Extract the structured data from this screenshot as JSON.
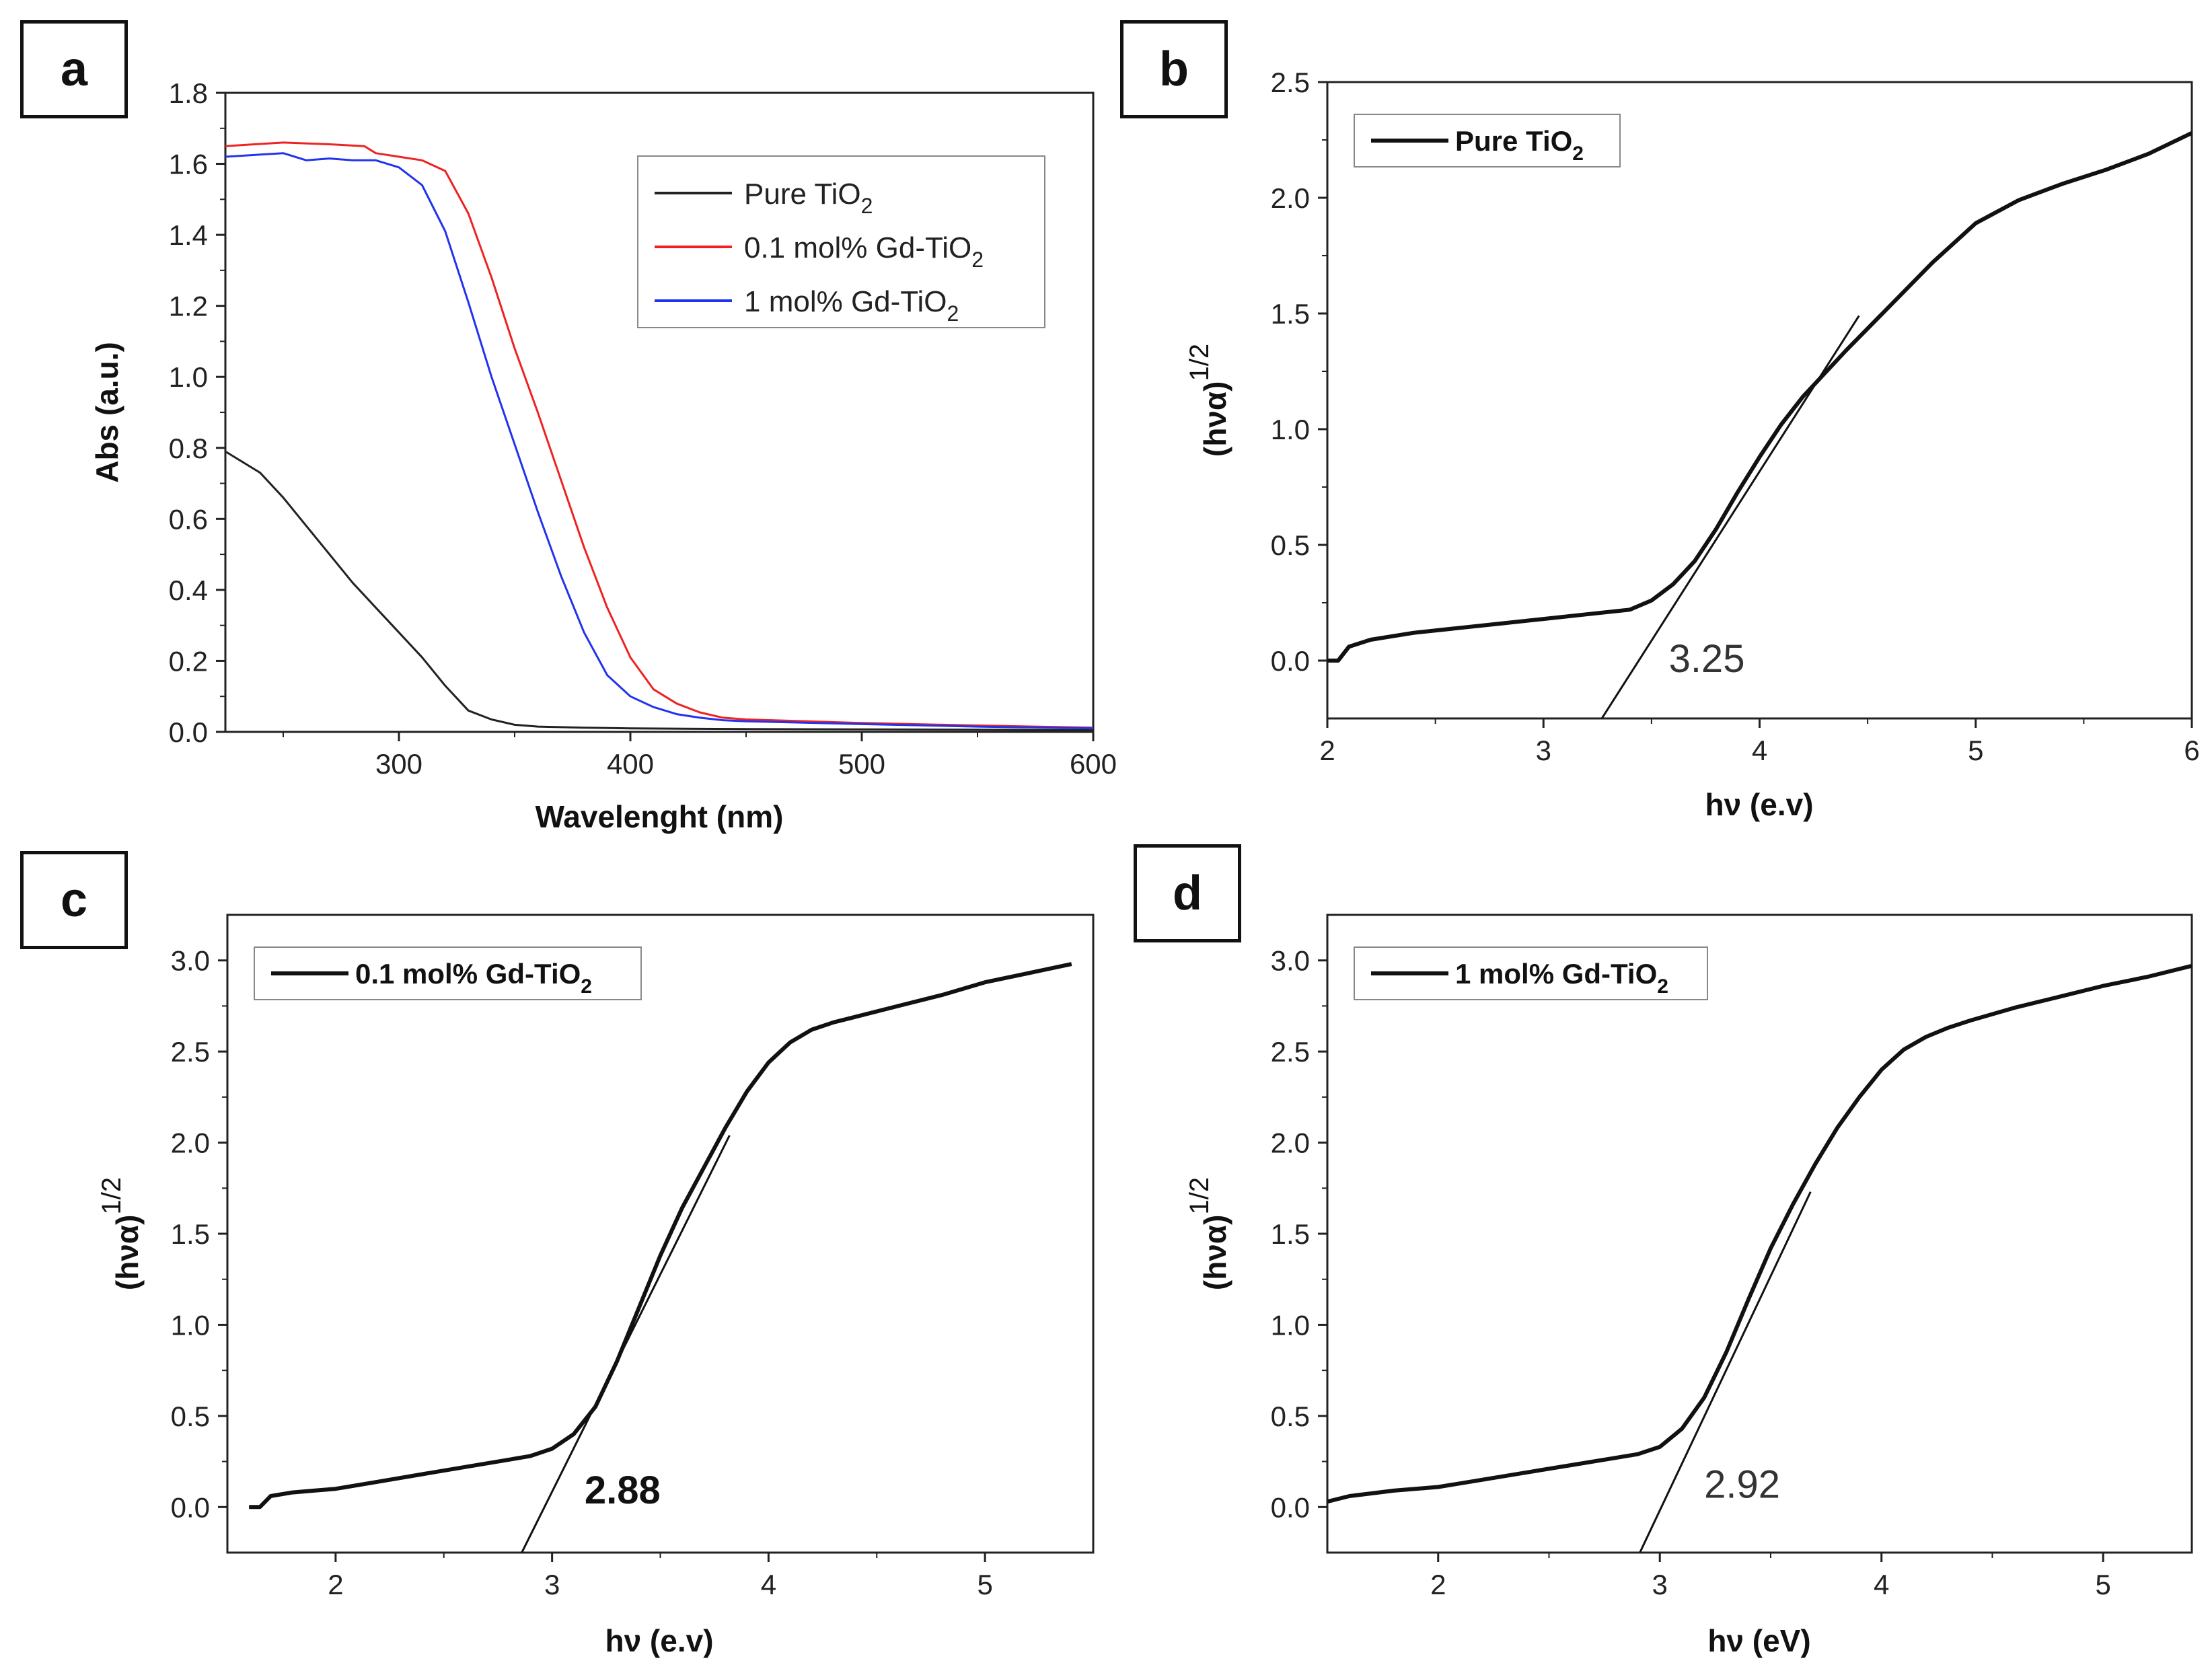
{
  "chart_data": [
    {
      "panel": "a",
      "type": "line",
      "title": "",
      "xlabel": "Wavelenght (nm)",
      "ylabel": "Abs (a.u.)",
      "xlim": [
        225,
        600
      ],
      "ylim": [
        0,
        1.8
      ],
      "xticks": [
        300,
        400,
        500,
        600
      ],
      "yticks": [
        0.0,
        0.2,
        0.4,
        0.6,
        0.8,
        1.0,
        1.2,
        1.4,
        1.6,
        1.8
      ],
      "legend": "top-right",
      "series": [
        {
          "name": "Pure TiO",
          "sub": "2",
          "color": "#222222",
          "x": [
            225,
            240,
            250,
            260,
            270,
            280,
            290,
            300,
            310,
            320,
            330,
            340,
            350,
            360,
            380,
            400,
            450,
            500,
            550,
            600
          ],
          "y": [
            0.79,
            0.73,
            0.66,
            0.58,
            0.5,
            0.42,
            0.35,
            0.28,
            0.21,
            0.13,
            0.06,
            0.035,
            0.02,
            0.015,
            0.012,
            0.01,
            0.008,
            0.007,
            0.006,
            0.005
          ]
        },
        {
          "name": "0.1 mol% Gd-TiO",
          "sub": "2",
          "color": "#ee2222",
          "x": [
            225,
            250,
            270,
            285,
            290,
            300,
            310,
            320,
            330,
            340,
            350,
            360,
            370,
            380,
            390,
            400,
            410,
            420,
            430,
            440,
            450,
            500,
            550,
            600
          ],
          "y": [
            1.65,
            1.66,
            1.655,
            1.65,
            1.63,
            1.62,
            1.61,
            1.58,
            1.46,
            1.28,
            1.08,
            0.9,
            0.71,
            0.52,
            0.35,
            0.21,
            0.12,
            0.08,
            0.055,
            0.04,
            0.035,
            0.025,
            0.018,
            0.012
          ]
        },
        {
          "name": "1 mol% Gd-TiO",
          "sub": "2",
          "color": "#2233ee",
          "x": [
            225,
            250,
            260,
            270,
            280,
            290,
            300,
            310,
            320,
            330,
            340,
            350,
            360,
            370,
            380,
            390,
            400,
            410,
            420,
            430,
            440,
            450,
            500,
            550,
            600
          ],
          "y": [
            1.62,
            1.63,
            1.61,
            1.615,
            1.61,
            1.61,
            1.59,
            1.54,
            1.41,
            1.21,
            1.0,
            0.81,
            0.62,
            0.44,
            0.28,
            0.16,
            0.1,
            0.07,
            0.05,
            0.04,
            0.033,
            0.03,
            0.022,
            0.015,
            0.01
          ]
        }
      ]
    },
    {
      "panel": "b",
      "type": "line",
      "xlabel": "hν (e.v)",
      "ylabel": "(hνα)",
      "ylabel_sup": "1/2",
      "xlim": [
        2,
        6
      ],
      "ylim": [
        -0.25,
        2.5
      ],
      "xticks": [
        2,
        3,
        4,
        5,
        6
      ],
      "yticks": [
        0.0,
        0.5,
        1.0,
        1.5,
        2.0,
        2.5
      ],
      "legend": "top-left",
      "legend_label": "Pure TiO",
      "legend_sub": "2",
      "series": [
        {
          "name": "Pure TiO2",
          "x": [
            2,
            2.05,
            2.1,
            2.2,
            2.4,
            2.6,
            2.8,
            3.0,
            3.2,
            3.4,
            3.5,
            3.6,
            3.7,
            3.8,
            3.9,
            4.0,
            4.1,
            4.2,
            4.4,
            4.6,
            4.8,
            5.0,
            5.2,
            5.4,
            5.6,
            5.8,
            6.0
          ],
          "y": [
            0.0,
            0.0,
            0.06,
            0.09,
            0.12,
            0.14,
            0.16,
            0.18,
            0.2,
            0.22,
            0.26,
            0.33,
            0.43,
            0.57,
            0.73,
            0.88,
            1.02,
            1.14,
            1.34,
            1.53,
            1.72,
            1.89,
            1.99,
            2.06,
            2.12,
            2.19,
            2.28
          ]
        }
      ],
      "tangent": {
        "x": [
          3.27,
          4.46
        ],
        "y": [
          -0.25,
          1.49
        ]
      },
      "annotation": "3.25",
      "annotation_at": [
        3.58,
        -0.05
      ]
    },
    {
      "panel": "c",
      "type": "line",
      "xlabel": "hν (e.v)",
      "ylabel": "(hνα)",
      "ylabel_sup": "1/2",
      "xlim": [
        1.5,
        5.5
      ],
      "ylim": [
        -0.25,
        3.25
      ],
      "xticks": [
        2,
        3,
        4,
        5
      ],
      "yticks": [
        0.0,
        0.5,
        1.0,
        1.5,
        2.0,
        2.5,
        3.0
      ],
      "legend": "top-left",
      "legend_label": "0.1 mol% Gd-TiO",
      "legend_sub": "2",
      "series": [
        {
          "name": "0.1 mol% Gd-TiO2",
          "x": [
            1.6,
            1.65,
            1.7,
            1.8,
            1.9,
            2.0,
            2.2,
            2.4,
            2.6,
            2.8,
            2.9,
            3.0,
            3.1,
            3.2,
            3.3,
            3.4,
            3.5,
            3.6,
            3.7,
            3.8,
            3.9,
            4.0,
            4.1,
            4.2,
            4.3,
            4.4,
            4.6,
            4.8,
            5.0,
            5.2,
            5.4
          ],
          "y": [
            0.0,
            0.0,
            0.06,
            0.08,
            0.09,
            0.1,
            0.14,
            0.18,
            0.22,
            0.26,
            0.28,
            0.32,
            0.4,
            0.55,
            0.8,
            1.09,
            1.38,
            1.64,
            1.86,
            2.08,
            2.28,
            2.44,
            2.55,
            2.62,
            2.66,
            2.69,
            2.75,
            2.81,
            2.88,
            2.93,
            2.98
          ]
        }
      ],
      "tangent": {
        "x": [
          2.86,
          3.82
        ],
        "y": [
          -0.25,
          2.04
        ]
      },
      "annotation": "2.88",
      "annotation_at": [
        3.15,
        0.02
      ]
    },
    {
      "panel": "d",
      "type": "line",
      "xlabel": "hν (eV)",
      "ylabel": "(hνα)",
      "ylabel_sup": "1/2",
      "xlim": [
        1.5,
        5.4
      ],
      "ylim": [
        -0.25,
        3.25
      ],
      "xticks": [
        2,
        3,
        4,
        5
      ],
      "yticks": [
        0.0,
        0.5,
        1.0,
        1.5,
        2.0,
        2.5,
        3.0
      ],
      "legend": "top-left",
      "legend_label": "1 mol% Gd-TiO",
      "legend_sub": "2",
      "series": [
        {
          "name": "1 mol% Gd-TiO2",
          "x": [
            1.5,
            1.6,
            1.8,
            2.0,
            2.2,
            2.4,
            2.6,
            2.8,
            2.9,
            3.0,
            3.1,
            3.2,
            3.3,
            3.4,
            3.5,
            3.6,
            3.7,
            3.8,
            3.9,
            4.0,
            4.1,
            4.2,
            4.3,
            4.4,
            4.6,
            4.8,
            5.0,
            5.2,
            5.4
          ],
          "y": [
            0.03,
            0.06,
            0.09,
            0.11,
            0.15,
            0.19,
            0.23,
            0.27,
            0.29,
            0.33,
            0.43,
            0.6,
            0.85,
            1.14,
            1.42,
            1.66,
            1.88,
            2.08,
            2.25,
            2.4,
            2.51,
            2.58,
            2.63,
            2.67,
            2.74,
            2.8,
            2.86,
            2.91,
            2.97
          ]
        }
      ],
      "tangent": {
        "x": [
          2.91,
          3.68
        ],
        "y": [
          -0.25,
          1.73
        ]
      },
      "annotation": "2.92",
      "annotation_at": [
        3.2,
        0.05
      ]
    }
  ]
}
